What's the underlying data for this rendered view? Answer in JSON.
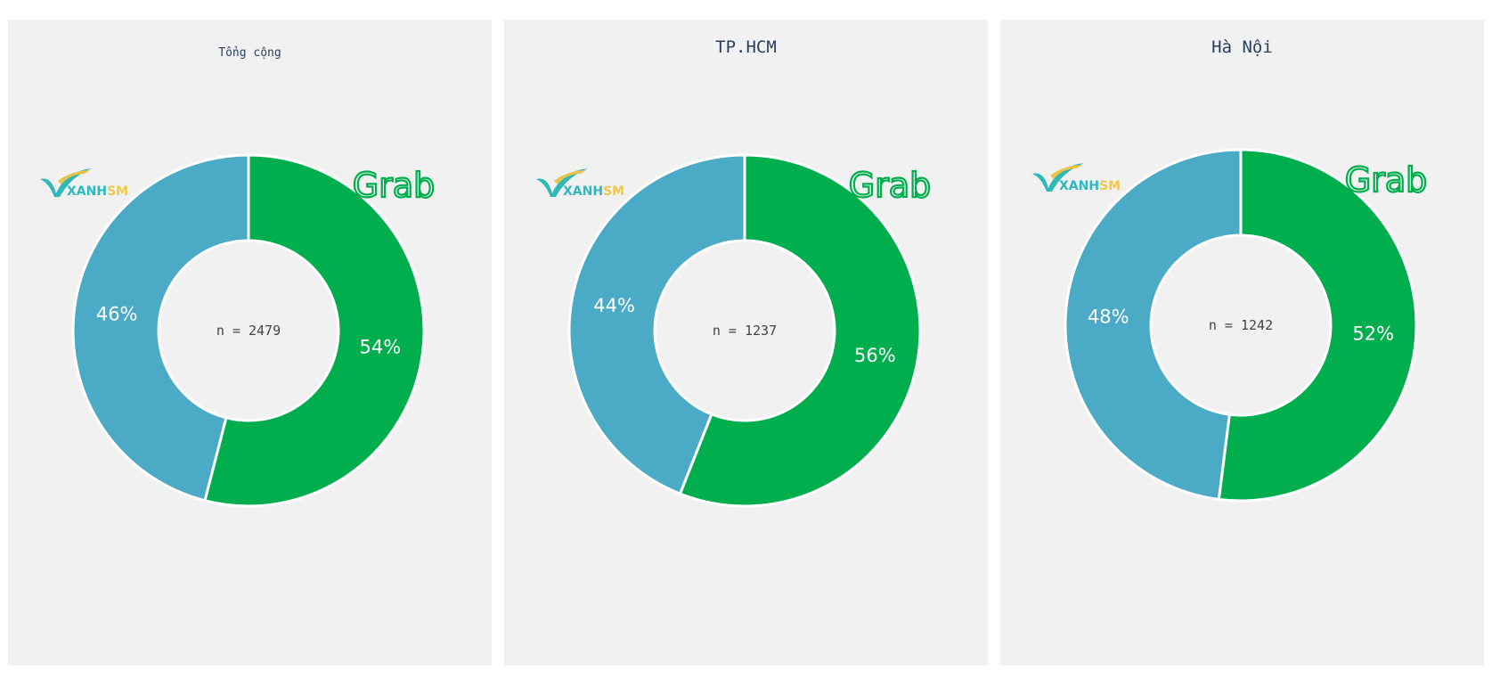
{
  "colors": {
    "grab": "#00AE4E",
    "xanhsm": "#4BABC6",
    "background": "#F1F1F1",
    "title": "#2A3F5F"
  },
  "logos": {
    "xanhsm": "XANH SM",
    "grab": "Grab"
  },
  "chart_data": [
    {
      "type": "pie",
      "hole": true,
      "title": "Tổng cộng",
      "center_label": "n = 2479",
      "categories": [
        "Grab",
        "Xanh SM"
      ],
      "values": [
        54,
        46
      ],
      "labels": [
        "54%",
        "46%"
      ]
    },
    {
      "type": "pie",
      "hole": true,
      "title": "TP.HCM",
      "center_label": "n = 1237",
      "categories": [
        "Grab",
        "Xanh SM"
      ],
      "values": [
        56,
        44
      ],
      "labels": [
        "56%",
        "44%"
      ]
    },
    {
      "type": "pie",
      "hole": true,
      "title": "Hà Nội",
      "center_label": "n = 1242",
      "categories": [
        "Grab",
        "Xanh SM"
      ],
      "values": [
        52,
        48
      ],
      "labels": [
        "52%",
        "48%"
      ]
    }
  ]
}
